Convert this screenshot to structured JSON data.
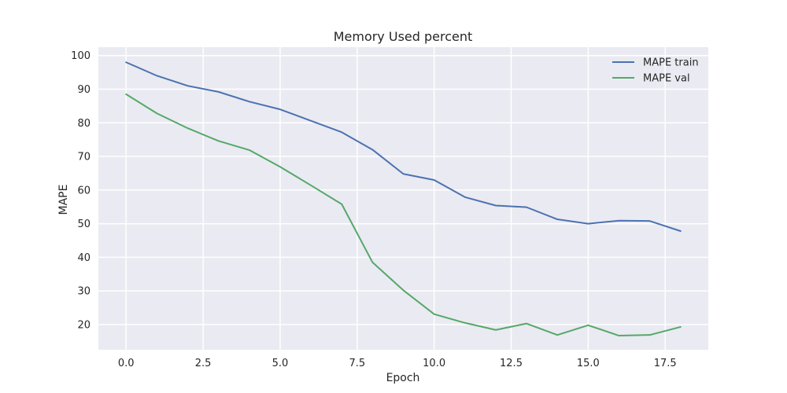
{
  "chart_data": {
    "type": "line",
    "title": "Memory Used percent",
    "xlabel": "Epoch",
    "ylabel": "MAPE",
    "xlim": [
      -0.9,
      18.9
    ],
    "ylim": [
      12.5,
      102.5
    ],
    "xticks": [
      0,
      2.5,
      5,
      7.5,
      10,
      12.5,
      15,
      17.5
    ],
    "xtick_labels": [
      "0.0",
      "2.5",
      "5.0",
      "7.5",
      "10.0",
      "12.5",
      "15.0",
      "17.5"
    ],
    "yticks": [
      20,
      30,
      40,
      50,
      60,
      70,
      80,
      90,
      100
    ],
    "ytick_labels": [
      "20",
      "30",
      "40",
      "50",
      "60",
      "70",
      "80",
      "90",
      "100"
    ],
    "grid": true,
    "legend_position": "top-right",
    "x": [
      0,
      1,
      2,
      3,
      4,
      5,
      6,
      7,
      8,
      9,
      10,
      11,
      12,
      13,
      14,
      15,
      16,
      17,
      18
    ],
    "series": [
      {
        "name": "MAPE train",
        "color": "#4c72b0",
        "values": [
          98.0,
          94.0,
          91.0,
          89.2,
          86.3,
          84.0,
          80.6,
          77.2,
          72.0,
          64.8,
          63.0,
          57.9,
          55.4,
          54.9,
          51.3,
          50.0,
          50.9,
          50.8,
          47.8
        ]
      },
      {
        "name": "MAPE val",
        "color": "#55a868",
        "values": [
          88.5,
          82.8,
          78.4,
          74.6,
          71.9,
          66.9,
          61.4,
          55.8,
          38.5,
          30.2,
          23.1,
          20.5,
          18.4,
          20.3,
          16.9,
          19.8,
          16.7,
          16.9,
          19.3
        ]
      }
    ]
  }
}
